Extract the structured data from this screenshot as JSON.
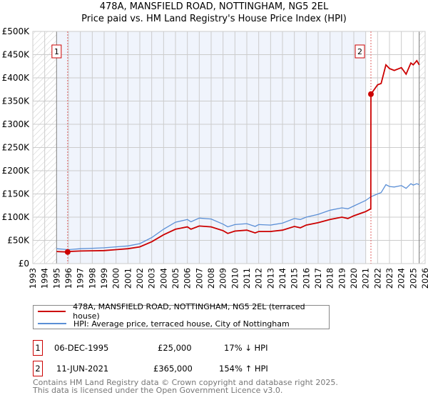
{
  "chart_data": {
    "type": "line",
    "title": "478A, MANSFIELD ROAD, NOTTINGHAM, NG5 2EL",
    "subtitle": "Price paid vs. HM Land Registry's House Price Index (HPI)",
    "xlim": [
      1993,
      2026
    ],
    "ylim": [
      0,
      500000
    ],
    "x_ticks": [
      "1993",
      "1994",
      "1995",
      "1996",
      "1997",
      "1998",
      "1999",
      "2000",
      "2001",
      "2002",
      "2003",
      "2004",
      "2005",
      "2006",
      "2007",
      "2008",
      "2009",
      "2010",
      "2011",
      "2012",
      "2013",
      "2014",
      "2015",
      "2016",
      "2017",
      "2018",
      "2019",
      "2020",
      "2021",
      "2022",
      "2023",
      "2024",
      "2025",
      "2026"
    ],
    "y_ticks": [
      {
        "v": 0,
        "l": "£0"
      },
      {
        "v": 50000,
        "l": "£50K"
      },
      {
        "v": 100000,
        "l": "£100K"
      },
      {
        "v": 150000,
        "l": "£150K"
      },
      {
        "v": 200000,
        "l": "£200K"
      },
      {
        "v": 250000,
        "l": "£250K"
      },
      {
        "v": 300000,
        "l": "£300K"
      },
      {
        "v": 350000,
        "l": "£350K"
      },
      {
        "v": 400000,
        "l": "£400K"
      },
      {
        "v": 450000,
        "l": "£450K"
      },
      {
        "v": 500000,
        "l": "£500K"
      }
    ],
    "grid": true,
    "series": [
      {
        "name": "478A, MANSFIELD ROAD, NOTTINGHAM, NG5 2EL (terraced house)",
        "color": "#cc0000",
        "x": [
          1995,
          1995.93,
          1996,
          1997,
          1998,
          1999,
          2000,
          2001,
          2002,
          2003,
          2004,
          2005,
          2006,
          2006.3,
          2007,
          2008,
          2009,
          2009.4,
          2010,
          2011,
          2011.7,
          2012,
          2013,
          2014,
          2015,
          2015.5,
          2016,
          2017,
          2018,
          2019,
          2019.5,
          2020,
          2021,
          2021.43,
          2021.44,
          2022,
          2022.3,
          2022.7,
          2023,
          2023.4,
          2024,
          2024.4,
          2024.8,
          2025,
          2025.3,
          2025.5
        ],
        "y": [
          26000,
          25000,
          26000,
          27000,
          27500,
          28000,
          30000,
          32000,
          36000,
          47000,
          62000,
          74000,
          79000,
          74000,
          81000,
          79000,
          71000,
          65000,
          70000,
          72000,
          66000,
          69000,
          69000,
          72000,
          80000,
          77000,
          83000,
          88000,
          95000,
          100000,
          97000,
          103000,
          112000,
          118000,
          365000,
          385000,
          388000,
          428000,
          420000,
          416000,
          422000,
          408000,
          432000,
          428000,
          437000,
          428000
        ]
      },
      {
        "name": "HPI: Average price, terraced house, City of Nottingham",
        "color": "#5b8fd6",
        "x": [
          1995,
          1996,
          1997,
          1998,
          1999,
          2000,
          2001,
          2002,
          2003,
          2004,
          2005,
          2006,
          2006.3,
          2007,
          2008,
          2009,
          2009.4,
          2010,
          2011,
          2011.7,
          2012,
          2013,
          2014,
          2015,
          2015.5,
          2016,
          2017,
          2018,
          2019,
          2019.5,
          2020,
          2021,
          2021.44,
          2022,
          2022.3,
          2022.7,
          2023,
          2023.4,
          2024,
          2024.4,
          2024.8,
          2025,
          2025.3,
          2025.5
        ],
        "y": [
          32000,
          30000,
          32000,
          33000,
          34000,
          36000,
          38000,
          43000,
          56000,
          74000,
          89000,
          95000,
          90000,
          98000,
          96000,
          85000,
          79000,
          84000,
          86000,
          80000,
          84000,
          83000,
          87000,
          97000,
          95000,
          100000,
          106000,
          115000,
          120000,
          118000,
          124000,
          136000,
          144000,
          150000,
          153000,
          170000,
          166000,
          165000,
          168000,
          162000,
          172000,
          169000,
          172000,
          170000
        ]
      }
    ],
    "sales": [
      {
        "label": "1",
        "x": 1995.93,
        "y": 25000
      },
      {
        "label": "2",
        "x": 2021.44,
        "y": 365000
      }
    ],
    "shaded_range": [
      1995,
      2021
    ],
    "hatched_ranges": [
      [
        1993,
        1995
      ],
      [
        2025.5,
        2026
      ]
    ]
  },
  "legend": [
    "478A, MANSFIELD ROAD, NOTTINGHAM, NG5 2EL (terraced house)",
    "HPI: Average price, terraced house, City of Nottingham"
  ],
  "transactions": [
    {
      "num": "1",
      "date": "06-DEC-1995",
      "price": "£25,000",
      "hpi": "17% ↓ HPI"
    },
    {
      "num": "2",
      "date": "11-JUN-2021",
      "price": "£365,000",
      "hpi": "154% ↑ HPI"
    }
  ],
  "footer": [
    "Contains HM Land Registry data © Crown copyright and database right 2025.",
    "This data is licensed under the Open Government Licence v3.0."
  ]
}
